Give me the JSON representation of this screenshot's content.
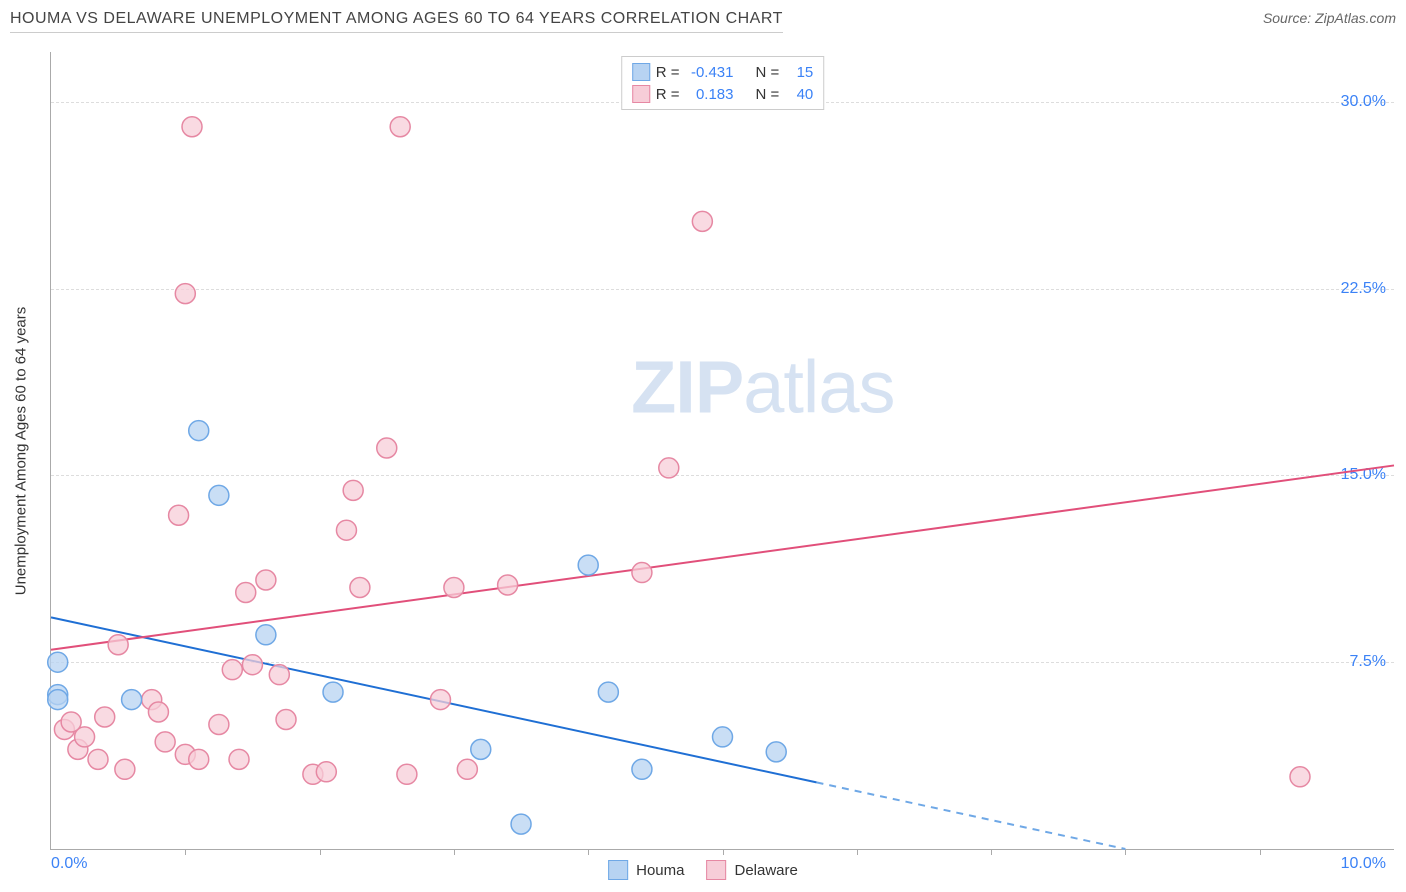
{
  "header": {
    "title": "HOUMA VS DELAWARE UNEMPLOYMENT AMONG AGES 60 TO 64 YEARS CORRELATION CHART",
    "source_label": "Source: ZipAtlas.com"
  },
  "watermark": {
    "zip": "ZIP",
    "atlas": "atlas"
  },
  "chart": {
    "type": "scatter",
    "background_color": "#ffffff",
    "grid_color": "#dddddd",
    "axis_color": "#aaaaaa",
    "y_axis_label": "Unemployment Among Ages 60 to 64 years",
    "x_min": 0.0,
    "x_max": 10.0,
    "y_min": 0.0,
    "y_max": 32.0,
    "y_ticks": [
      7.5,
      15.0,
      22.5,
      30.0
    ],
    "y_tick_labels": [
      "7.5%",
      "15.0%",
      "22.5%",
      "30.0%"
    ],
    "x_ticks": [
      1.0,
      2.0,
      3.0,
      4.0,
      5.0,
      6.0,
      7.0,
      8.0,
      9.0
    ],
    "x_origin_label": "0.0%",
    "x_end_label": "10.0%",
    "marker_radius": 10,
    "marker_stroke_width": 1.5,
    "line_width": 2,
    "series": [
      {
        "name": "Houma",
        "color_fill": "#b7d3f2",
        "color_stroke": "#6fa8e6",
        "line_color": "#1f6fd4",
        "trend": {
          "x1": 0.0,
          "y1": 9.3,
          "x2": 8.0,
          "y2": 0.0,
          "dash_after_x": 5.7
        },
        "points": [
          {
            "x": 0.05,
            "y": 6.2
          },
          {
            "x": 0.05,
            "y": 6.0
          },
          {
            "x": 0.05,
            "y": 7.5
          },
          {
            "x": 0.6,
            "y": 6.0
          },
          {
            "x": 1.1,
            "y": 16.8
          },
          {
            "x": 1.25,
            "y": 14.2
          },
          {
            "x": 1.6,
            "y": 8.6
          },
          {
            "x": 2.1,
            "y": 6.3
          },
          {
            "x": 3.2,
            "y": 4.0
          },
          {
            "x": 3.5,
            "y": 1.0
          },
          {
            "x": 4.0,
            "y": 11.4
          },
          {
            "x": 4.15,
            "y": 6.3
          },
          {
            "x": 4.4,
            "y": 3.2
          },
          {
            "x": 5.0,
            "y": 4.5
          },
          {
            "x": 5.4,
            "y": 3.9
          }
        ]
      },
      {
        "name": "Delaware",
        "color_fill": "#f7cdd8",
        "color_stroke": "#e688a3",
        "line_color": "#e14f7a",
        "trend": {
          "x1": 0.0,
          "y1": 8.0,
          "x2": 10.0,
          "y2": 15.4,
          "dash_after_x": 10.0
        },
        "points": [
          {
            "x": 0.1,
            "y": 4.8
          },
          {
            "x": 0.15,
            "y": 5.1
          },
          {
            "x": 0.2,
            "y": 4.0
          },
          {
            "x": 0.25,
            "y": 4.5
          },
          {
            "x": 0.35,
            "y": 3.6
          },
          {
            "x": 0.4,
            "y": 5.3
          },
          {
            "x": 0.5,
            "y": 8.2
          },
          {
            "x": 0.55,
            "y": 3.2
          },
          {
            "x": 0.75,
            "y": 6.0
          },
          {
            "x": 0.8,
            "y": 5.5
          },
          {
            "x": 0.85,
            "y": 4.3
          },
          {
            "x": 0.95,
            "y": 13.4
          },
          {
            "x": 1.0,
            "y": 22.3
          },
          {
            "x": 1.0,
            "y": 3.8
          },
          {
            "x": 1.05,
            "y": 29.0
          },
          {
            "x": 1.1,
            "y": 3.6
          },
          {
            "x": 1.25,
            "y": 5.0
          },
          {
            "x": 1.35,
            "y": 7.2
          },
          {
            "x": 1.4,
            "y": 3.6
          },
          {
            "x": 1.45,
            "y": 10.3
          },
          {
            "x": 1.5,
            "y": 7.4
          },
          {
            "x": 1.6,
            "y": 10.8
          },
          {
            "x": 1.7,
            "y": 7.0
          },
          {
            "x": 1.75,
            "y": 5.2
          },
          {
            "x": 1.95,
            "y": 3.0
          },
          {
            "x": 2.05,
            "y": 3.1
          },
          {
            "x": 2.2,
            "y": 12.8
          },
          {
            "x": 2.25,
            "y": 14.4
          },
          {
            "x": 2.3,
            "y": 10.5
          },
          {
            "x": 2.5,
            "y": 16.1
          },
          {
            "x": 2.6,
            "y": 29.0
          },
          {
            "x": 2.65,
            "y": 3.0
          },
          {
            "x": 2.9,
            "y": 6.0
          },
          {
            "x": 3.0,
            "y": 10.5
          },
          {
            "x": 3.1,
            "y": 3.2
          },
          {
            "x": 3.4,
            "y": 10.6
          },
          {
            "x": 4.4,
            "y": 11.1
          },
          {
            "x": 4.6,
            "y": 15.3
          },
          {
            "x": 4.85,
            "y": 25.2
          },
          {
            "x": 9.3,
            "y": 2.9
          }
        ]
      }
    ],
    "stats_box": {
      "rows": [
        {
          "swatch_fill": "#b7d3f2",
          "swatch_stroke": "#6fa8e6",
          "r_label": "R =",
          "r_value": "-0.431",
          "n_label": "N =",
          "n_value": "15"
        },
        {
          "swatch_fill": "#f7cdd8",
          "swatch_stroke": "#e688a3",
          "r_label": "R =",
          "r_value": "0.183",
          "n_label": "N =",
          "n_value": "40"
        }
      ]
    },
    "legend_bottom": [
      {
        "swatch_fill": "#b7d3f2",
        "swatch_stroke": "#6fa8e6",
        "label": "Houma"
      },
      {
        "swatch_fill": "#f7cdd8",
        "swatch_stroke": "#e688a3",
        "label": "Delaware"
      }
    ]
  }
}
